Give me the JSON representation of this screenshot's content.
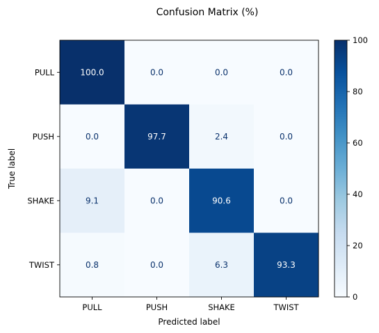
{
  "chart_data": {
    "type": "heatmap",
    "title": "Confusion Matrix (%)",
    "xlabel": "Predicted label",
    "ylabel": "True label",
    "x_categories": [
      "PULL",
      "PUSH",
      "SHAKE",
      "TWIST"
    ],
    "y_categories": [
      "PULL",
      "PUSH",
      "SHAKE",
      "TWIST"
    ],
    "values": [
      [
        100.0,
        0.0,
        0.0,
        0.0
      ],
      [
        0.0,
        97.7,
        2.4,
        0.0
      ],
      [
        9.1,
        0.0,
        90.6,
        0.0
      ],
      [
        0.8,
        0.0,
        6.3,
        93.3
      ]
    ],
    "cell_labels": [
      [
        "100.0",
        "0.0",
        "0.0",
        "0.0"
      ],
      [
        "0.0",
        "97.7",
        "2.4",
        "0.0"
      ],
      [
        "9.1",
        "0.0",
        "90.6",
        "0.0"
      ],
      [
        "0.8",
        "0.0",
        "6.3",
        "93.3"
      ]
    ],
    "colorbar": {
      "range": [
        0,
        100
      ],
      "ticks": [
        0,
        20,
        40,
        60,
        80,
        100
      ],
      "tick_labels": [
        "0",
        "20",
        "40",
        "60",
        "80",
        "100"
      ]
    },
    "colormap": "Blues",
    "grid": false
  }
}
